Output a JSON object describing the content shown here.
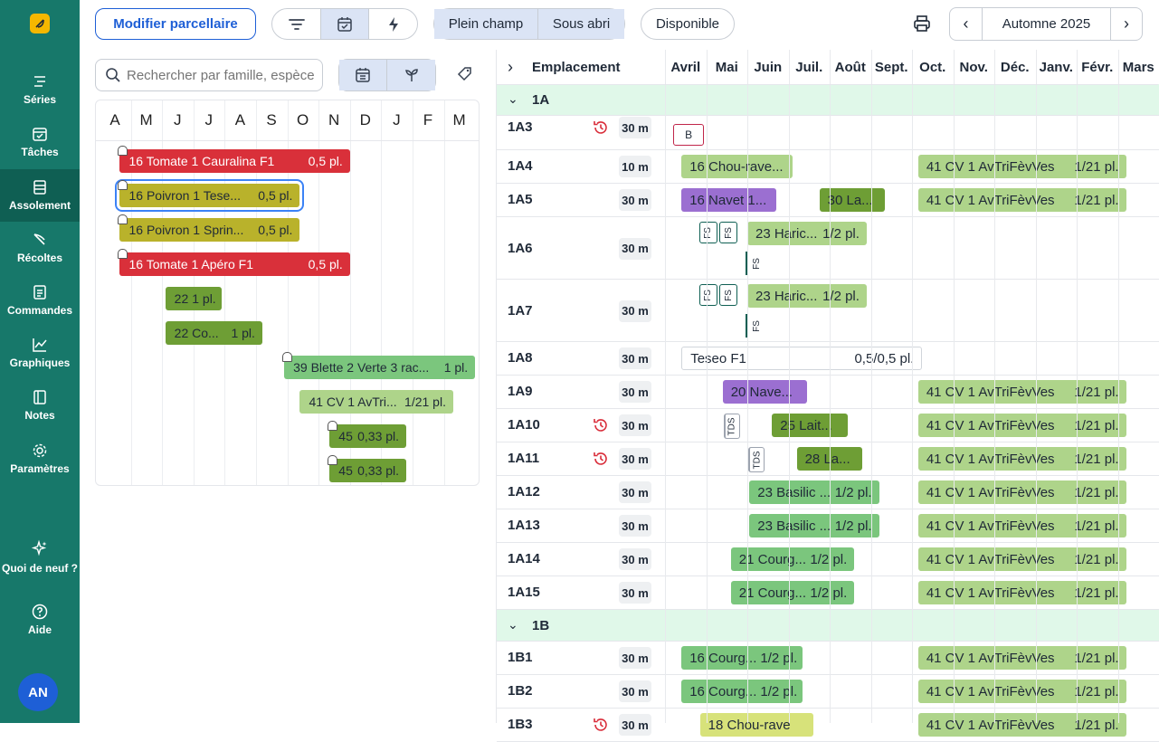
{
  "sidebar": {
    "items": [
      {
        "label": "Séries",
        "icon": "series-icon"
      },
      {
        "label": "Tâches",
        "icon": "tasks-icon"
      },
      {
        "label": "Assolement",
        "icon": "layout-icon",
        "active": true
      },
      {
        "label": "Récoltes",
        "icon": "harvest-icon"
      },
      {
        "label": "Commandes",
        "icon": "orders-icon"
      },
      {
        "label": "Graphiques",
        "icon": "chart-icon"
      },
      {
        "label": "Notes",
        "icon": "notes-icon"
      },
      {
        "label": "Paramètres",
        "icon": "gear-icon"
      }
    ],
    "whats_new": "Quoi de neuf ?",
    "help": "Aide",
    "avatar": "AN"
  },
  "toolbar": {
    "edit_plots": "Modifier parcellaire",
    "plein_champ": "Plein champ",
    "sous_abri": "Sous abri",
    "disponible": "Disponible",
    "season": "Automne 2025"
  },
  "left": {
    "search_placeholder": "Rechercher par famille, espèce",
    "months": [
      "A",
      "M",
      "J",
      "J",
      "A",
      "S",
      "O",
      "N",
      "D",
      "J",
      "F",
      "M"
    ],
    "bars": [
      {
        "label": "16 Tomate 1 Cauralina F1",
        "qty": "0,5 pl.",
        "color": "#d9303a",
        "text": "#ffffff",
        "row": 0,
        "start": 0.65,
        "end": 8
      },
      {
        "label": "16 Poivron 1 Tese...",
        "qty": "0,5 pl.",
        "color": "#b9b22b",
        "text": "#1f2937",
        "row": 1,
        "start": 0.65,
        "end": 6.4,
        "selected": true
      },
      {
        "label": "16 Poivron 1 Sprin...",
        "qty": "0,5 pl.",
        "color": "#b9b22b",
        "text": "#1f2937",
        "row": 2,
        "start": 0.65,
        "end": 6.4
      },
      {
        "label": "16 Tomate 1 Apéro F1",
        "qty": "0,5 pl.",
        "color": "#d9303a",
        "text": "#ffffff",
        "row": 3,
        "start": 0.65,
        "end": 8
      },
      {
        "label": "22",
        "qty": "1 pl.",
        "color": "#6e9e35",
        "text": "#1f2937",
        "row": 4,
        "start": 2.1,
        "end": 3.9
      },
      {
        "label": "22 Co...",
        "qty": "1 pl.",
        "color": "#6e9e35",
        "text": "#1f2937",
        "row": 5,
        "start": 2.1,
        "end": 5.2
      },
      {
        "label": "39 Blette 2 Verte 3 rac...",
        "qty": "1 pl.",
        "color": "#7bc67d",
        "text": "#1f2937",
        "row": 6,
        "start": 5.9,
        "end": 12
      },
      {
        "label": "41 CV 1 AvTri...",
        "qty": "1/21 pl.",
        "color": "#aed48a",
        "text": "#1f2937",
        "row": 7,
        "start": 6.4,
        "end": 11.3
      },
      {
        "label": "45",
        "qty": "0,33 pl.",
        "color": "#6e9e35",
        "text": "#1f2937",
        "row": 8,
        "start": 7.35,
        "end": 9.8
      },
      {
        "label": "45",
        "qty": "0,33 pl.",
        "color": "#6e9e35",
        "text": "#1f2937",
        "row": 9,
        "start": 7.35,
        "end": 9.8
      }
    ]
  },
  "right": {
    "header_label": "Emplacement",
    "months": [
      "Avril",
      "Mai",
      "Juin",
      "Juil.",
      "Août",
      "Sept.",
      "Oct.",
      "Nov.",
      "Déc.",
      "Janv.",
      "Févr.",
      "Mars"
    ],
    "rows": [
      {
        "type": "group",
        "label": "1A"
      },
      {
        "type": "row",
        "label": "1A3",
        "len": "30 m",
        "hist": true,
        "h": 38,
        "items": [
          {
            "kind": "tagbox",
            "text": "B",
            "start": 0.2
          }
        ]
      },
      {
        "type": "row",
        "label": "1A4",
        "len": "10 m",
        "h": 37,
        "items": [
          {
            "kind": "bar",
            "label": "16 Chou-rave...",
            "qty": "",
            "start": 0.4,
            "end": 3.1,
            "color": "#aed48a"
          },
          {
            "kind": "bar",
            "label": "41 CV 1 AvTriFèvVes",
            "qty": "1/21 pl.",
            "start": 6.15,
            "end": 11.2,
            "color": "#aed48a"
          }
        ]
      },
      {
        "type": "row",
        "label": "1A5",
        "len": "30 m",
        "h": 37,
        "items": [
          {
            "kind": "bar",
            "label": "16 Navet 1...",
            "qty": "",
            "start": 0.4,
            "end": 2.7,
            "color": "#9b6fd1"
          },
          {
            "kind": "bar",
            "label": "30 La...",
            "qty": "",
            "start": 3.75,
            "end": 5.35,
            "color": "#6e9e35"
          },
          {
            "kind": "bar",
            "label": "41 CV 1 AvTriFèvVes",
            "qty": "1/21 pl.",
            "start": 6.15,
            "end": 11.2,
            "color": "#aed48a"
          }
        ]
      },
      {
        "type": "row",
        "label": "1A6",
        "len": "30 m",
        "h": 69,
        "items": [
          {
            "kind": "fs",
            "text": "FS",
            "start": 1.0
          },
          {
            "kind": "fs",
            "text": "FS",
            "start": 1.5
          },
          {
            "kind": "bar",
            "label": "23 Haric...",
            "qty": "1/2 pl.",
            "start": 2.0,
            "end": 4.9,
            "color": "#aed48a"
          },
          {
            "kind": "fsline",
            "text": "FS",
            "start": 2.0
          }
        ]
      },
      {
        "type": "row",
        "label": "1A7",
        "len": "30 m",
        "h": 69,
        "items": [
          {
            "kind": "fs",
            "text": "FS",
            "start": 1.0
          },
          {
            "kind": "fs",
            "text": "FS",
            "start": 1.5
          },
          {
            "kind": "bar",
            "label": "23 Haric...",
            "qty": "1/2 pl.",
            "start": 2.0,
            "end": 4.9,
            "color": "#aed48a"
          },
          {
            "kind": "fsline",
            "text": "FS",
            "start": 2.0
          }
        ]
      },
      {
        "type": "row",
        "label": "1A8",
        "len": "30 m",
        "h": 37,
        "items": [
          {
            "kind": "outline",
            "label": "Teseo F1",
            "qty": "0,5/0,5 pl.",
            "start": 0.4,
            "end": 6.25
          }
        ]
      },
      {
        "type": "row",
        "label": "1A9",
        "len": "30 m",
        "h": 37,
        "items": [
          {
            "kind": "bar",
            "label": "20 Nave...",
            "qty": "",
            "start": 1.4,
            "end": 3.45,
            "color": "#9b6fd1"
          },
          {
            "kind": "bar",
            "label": "41 CV 1 AvTriFèvVes",
            "qty": "1/21 pl.",
            "start": 6.15,
            "end": 11.2,
            "color": "#aed48a"
          }
        ]
      },
      {
        "type": "row",
        "label": "1A10",
        "len": "30 m",
        "hist": true,
        "h": 37,
        "items": [
          {
            "kind": "tds",
            "text": "TDS",
            "start": 1.6
          },
          {
            "kind": "bar",
            "label": "25 Lait...",
            "qty": "",
            "start": 2.6,
            "end": 4.45,
            "color": "#6e9e35"
          },
          {
            "kind": "bar",
            "label": "41 CV 1 AvTriFèvVes",
            "qty": "1/21 pl.",
            "start": 6.15,
            "end": 11.2,
            "color": "#aed48a"
          }
        ]
      },
      {
        "type": "row",
        "label": "1A11",
        "len": "30 m",
        "hist": true,
        "h": 37,
        "items": [
          {
            "kind": "tds",
            "text": "TDS",
            "start": 2.2
          },
          {
            "kind": "bar",
            "label": "28 La...",
            "qty": "",
            "start": 3.2,
            "end": 4.8,
            "color": "#6e9e35"
          },
          {
            "kind": "bar",
            "label": "41 CV 1 AvTriFèvVes",
            "qty": "1/21 pl.",
            "start": 6.15,
            "end": 11.2,
            "color": "#aed48a"
          }
        ]
      },
      {
        "type": "row",
        "label": "1A12",
        "len": "30 m",
        "h": 37,
        "items": [
          {
            "kind": "bar",
            "label": "23 Basilic ...",
            "qty": "1/2 pl.",
            "start": 2.05,
            "end": 5.2,
            "color": "#7bc67d"
          },
          {
            "kind": "bar",
            "label": "41 CV 1 AvTriFèvVes",
            "qty": "1/21 pl.",
            "start": 6.15,
            "end": 11.2,
            "color": "#aed48a"
          }
        ]
      },
      {
        "type": "row",
        "label": "1A13",
        "len": "30 m",
        "h": 37,
        "items": [
          {
            "kind": "bar",
            "label": "23 Basilic ...",
            "qty": "1/2 pl.",
            "start": 2.05,
            "end": 5.2,
            "color": "#7bc67d"
          },
          {
            "kind": "bar",
            "label": "41 CV 1 AvTriFèvVes",
            "qty": "1/21 pl.",
            "start": 6.15,
            "end": 11.2,
            "color": "#aed48a"
          }
        ]
      },
      {
        "type": "row",
        "label": "1A14",
        "len": "30 m",
        "h": 37,
        "items": [
          {
            "kind": "bar",
            "label": "21 Courg...",
            "qty": "1/2 pl.",
            "start": 1.6,
            "end": 4.6,
            "color": "#7bc67d"
          },
          {
            "kind": "bar",
            "label": "41 CV 1 AvTriFèvVes",
            "qty": "1/21 pl.",
            "start": 6.15,
            "end": 11.2,
            "color": "#aed48a"
          }
        ]
      },
      {
        "type": "row",
        "label": "1A15",
        "len": "30 m",
        "h": 37,
        "items": [
          {
            "kind": "bar",
            "label": "21 Courg...",
            "qty": "1/2 pl.",
            "start": 1.6,
            "end": 4.6,
            "color": "#7bc67d"
          },
          {
            "kind": "bar",
            "label": "41 CV 1 AvTriFèvVes",
            "qty": "1/21 pl.",
            "start": 6.15,
            "end": 11.2,
            "color": "#aed48a"
          }
        ]
      },
      {
        "type": "group",
        "label": "1B"
      },
      {
        "type": "row",
        "label": "1B1",
        "len": "30 m",
        "h": 37,
        "items": [
          {
            "kind": "bar",
            "label": "16 Courg...",
            "qty": "1/2 pl.",
            "start": 0.4,
            "end": 3.35,
            "color": "#7bc67d"
          },
          {
            "kind": "bar",
            "label": "41 CV 1 AvTriFèvVes",
            "qty": "1/21 pl.",
            "start": 6.15,
            "end": 11.2,
            "color": "#aed48a"
          }
        ]
      },
      {
        "type": "row",
        "label": "1B2",
        "len": "30 m",
        "h": 37,
        "items": [
          {
            "kind": "bar",
            "label": "16 Courg...",
            "qty": "1/2 pl.",
            "start": 0.4,
            "end": 3.35,
            "color": "#7bc67d"
          },
          {
            "kind": "bar",
            "label": "41 CV 1 AvTriFèvVes",
            "qty": "1/21 pl.",
            "start": 6.15,
            "end": 11.2,
            "color": "#aed48a"
          }
        ]
      },
      {
        "type": "row",
        "label": "1B3",
        "len": "30 m",
        "hist": true,
        "h": 37,
        "items": [
          {
            "kind": "bar",
            "label": "18 Chou-rave",
            "qty": "",
            "start": 0.85,
            "end": 3.6,
            "color": "#d7e27a"
          },
          {
            "kind": "bar",
            "label": "41 CV 1 AvTriFèvVes",
            "qty": "1/21 pl.",
            "start": 6.15,
            "end": 11.2,
            "color": "#aed48a"
          }
        ]
      }
    ]
  }
}
